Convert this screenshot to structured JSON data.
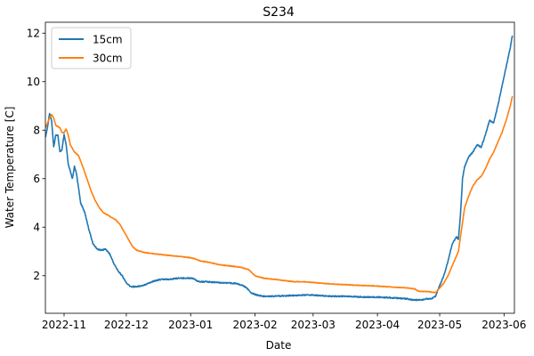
{
  "chart_data": {
    "type": "line",
    "title": "S234",
    "xlabel": "Date",
    "ylabel": "Water Temperature [C]",
    "xlim": [
      "2022-10-23",
      "2023-06-06"
    ],
    "ylim": [
      0.45,
      12.45
    ],
    "xticks": [
      {
        "date": "2022-11-01",
        "label": "2022-11"
      },
      {
        "date": "2022-12-01",
        "label": "2022-12"
      },
      {
        "date": "2023-01-01",
        "label": "2023-01"
      },
      {
        "date": "2023-02-01",
        "label": "2023-02"
      },
      {
        "date": "2023-03-01",
        "label": "2023-03"
      },
      {
        "date": "2023-04-01",
        "label": "2023-04"
      },
      {
        "date": "2023-05-01",
        "label": "2023-05"
      },
      {
        "date": "2023-06-01",
        "label": "2023-06"
      }
    ],
    "yticks": [
      2,
      4,
      6,
      8,
      10,
      12
    ],
    "grid": false,
    "legend_position": "top-left",
    "series": [
      {
        "name": "15cm",
        "color": "#1f77b4",
        "points": [
          [
            "2022-10-23",
            7.7
          ],
          [
            "2022-10-24",
            8.1
          ],
          [
            "2022-10-25",
            8.7
          ],
          [
            "2022-10-26",
            8.4
          ],
          [
            "2022-10-27",
            7.3
          ],
          [
            "2022-10-28",
            7.8
          ],
          [
            "2022-10-29",
            7.8
          ],
          [
            "2022-10-30",
            7.1
          ],
          [
            "2022-10-31",
            7.2
          ],
          [
            "2022-11-01",
            7.8
          ],
          [
            "2022-11-02",
            7.4
          ],
          [
            "2022-11-03",
            6.6
          ],
          [
            "2022-11-05",
            6.0
          ],
          [
            "2022-11-06",
            6.5
          ],
          [
            "2022-11-07",
            6.2
          ],
          [
            "2022-11-08",
            5.6
          ],
          [
            "2022-11-09",
            5.0
          ],
          [
            "2022-11-11",
            4.6
          ],
          [
            "2022-11-13",
            3.9
          ],
          [
            "2022-11-15",
            3.3
          ],
          [
            "2022-11-17",
            3.1
          ],
          [
            "2022-11-19",
            3.05
          ],
          [
            "2022-11-21",
            3.1
          ],
          [
            "2022-11-23",
            2.9
          ],
          [
            "2022-11-25",
            2.5
          ],
          [
            "2022-11-27",
            2.2
          ],
          [
            "2022-11-29",
            2.0
          ],
          [
            "2022-12-01",
            1.7
          ],
          [
            "2022-12-03",
            1.55
          ],
          [
            "2022-12-06",
            1.55
          ],
          [
            "2022-12-09",
            1.6
          ],
          [
            "2022-12-12",
            1.7
          ],
          [
            "2022-12-15",
            1.8
          ],
          [
            "2022-12-18",
            1.85
          ],
          [
            "2022-12-22",
            1.85
          ],
          [
            "2022-12-26",
            1.9
          ],
          [
            "2022-12-30",
            1.9
          ],
          [
            "2023-01-02",
            1.9
          ],
          [
            "2023-01-05",
            1.75
          ],
          [
            "2023-01-09",
            1.75
          ],
          [
            "2023-01-14",
            1.72
          ],
          [
            "2023-01-19",
            1.7
          ],
          [
            "2023-01-23",
            1.68
          ],
          [
            "2023-01-26",
            1.6
          ],
          [
            "2023-01-28",
            1.5
          ],
          [
            "2023-01-30",
            1.3
          ],
          [
            "2023-02-02",
            1.2
          ],
          [
            "2023-02-05",
            1.15
          ],
          [
            "2023-02-10",
            1.15
          ],
          [
            "2023-02-15",
            1.17
          ],
          [
            "2023-02-20",
            1.18
          ],
          [
            "2023-02-25",
            1.2
          ],
          [
            "2023-03-01",
            1.2
          ],
          [
            "2023-03-05",
            1.18
          ],
          [
            "2023-03-10",
            1.15
          ],
          [
            "2023-03-15",
            1.15
          ],
          [
            "2023-03-20",
            1.14
          ],
          [
            "2023-03-25",
            1.12
          ],
          [
            "2023-03-30",
            1.12
          ],
          [
            "2023-04-05",
            1.1
          ],
          [
            "2023-04-10",
            1.08
          ],
          [
            "2023-04-15",
            1.05
          ],
          [
            "2023-04-18",
            1.0
          ],
          [
            "2023-04-22",
            1.0
          ],
          [
            "2023-04-25",
            1.05
          ],
          [
            "2023-04-27",
            1.05
          ],
          [
            "2023-04-29",
            1.15
          ],
          [
            "2023-05-01",
            1.6
          ],
          [
            "2023-05-03",
            2.0
          ],
          [
            "2023-05-05",
            2.6
          ],
          [
            "2023-05-07",
            3.3
          ],
          [
            "2023-05-09",
            3.6
          ],
          [
            "2023-05-10",
            3.5
          ],
          [
            "2023-05-11",
            4.5
          ],
          [
            "2023-05-12",
            6.0
          ],
          [
            "2023-05-13",
            6.5
          ],
          [
            "2023-05-15",
            6.9
          ],
          [
            "2023-05-17",
            7.1
          ],
          [
            "2023-05-19",
            7.4
          ],
          [
            "2023-05-21",
            7.3
          ],
          [
            "2023-05-23",
            7.8
          ],
          [
            "2023-05-25",
            8.4
          ],
          [
            "2023-05-27",
            8.3
          ],
          [
            "2023-05-29",
            9.0
          ],
          [
            "2023-05-31",
            9.8
          ],
          [
            "2023-06-02",
            10.6
          ],
          [
            "2023-06-04",
            11.4
          ],
          [
            "2023-06-05",
            11.9
          ]
        ]
      },
      {
        "name": "30cm",
        "color": "#ff7f0e",
        "points": [
          [
            "2022-10-23",
            8.1
          ],
          [
            "2022-10-24",
            8.3
          ],
          [
            "2022-10-25",
            8.5
          ],
          [
            "2022-10-26",
            8.65
          ],
          [
            "2022-10-27",
            8.5
          ],
          [
            "2022-10-28",
            8.2
          ],
          [
            "2022-10-29",
            8.15
          ],
          [
            "2022-10-30",
            8.1
          ],
          [
            "2022-10-31",
            7.9
          ],
          [
            "2022-11-01",
            7.9
          ],
          [
            "2022-11-02",
            8.05
          ],
          [
            "2022-11-03",
            7.8
          ],
          [
            "2022-11-04",
            7.4
          ],
          [
            "2022-11-06",
            7.1
          ],
          [
            "2022-11-08",
            6.95
          ],
          [
            "2022-11-10",
            6.5
          ],
          [
            "2022-11-12",
            6.0
          ],
          [
            "2022-11-14",
            5.5
          ],
          [
            "2022-11-16",
            5.1
          ],
          [
            "2022-11-18",
            4.8
          ],
          [
            "2022-11-20",
            4.6
          ],
          [
            "2022-11-23",
            4.45
          ],
          [
            "2022-11-26",
            4.3
          ],
          [
            "2022-11-28",
            4.1
          ],
          [
            "2022-11-30",
            3.8
          ],
          [
            "2022-12-02",
            3.5
          ],
          [
            "2022-12-04",
            3.2
          ],
          [
            "2022-12-06",
            3.05
          ],
          [
            "2022-12-10",
            2.95
          ],
          [
            "2022-12-15",
            2.9
          ],
          [
            "2022-12-20",
            2.85
          ],
          [
            "2022-12-26",
            2.8
          ],
          [
            "2022-12-31",
            2.75
          ],
          [
            "2023-01-03",
            2.7
          ],
          [
            "2023-01-06",
            2.6
          ],
          [
            "2023-01-10",
            2.55
          ],
          [
            "2023-01-15",
            2.45
          ],
          [
            "2023-01-20",
            2.4
          ],
          [
            "2023-01-25",
            2.35
          ],
          [
            "2023-01-29",
            2.25
          ],
          [
            "2023-02-01",
            2.0
          ],
          [
            "2023-02-05",
            1.9
          ],
          [
            "2023-02-10",
            1.85
          ],
          [
            "2023-02-15",
            1.8
          ],
          [
            "2023-02-20",
            1.75
          ],
          [
            "2023-02-25",
            1.75
          ],
          [
            "2023-03-01",
            1.72
          ],
          [
            "2023-03-06",
            1.68
          ],
          [
            "2023-03-12",
            1.65
          ],
          [
            "2023-03-18",
            1.62
          ],
          [
            "2023-03-24",
            1.6
          ],
          [
            "2023-03-30",
            1.58
          ],
          [
            "2023-04-05",
            1.55
          ],
          [
            "2023-04-10",
            1.52
          ],
          [
            "2023-04-15",
            1.5
          ],
          [
            "2023-04-19",
            1.45
          ],
          [
            "2023-04-21",
            1.35
          ],
          [
            "2023-04-25",
            1.35
          ],
          [
            "2023-04-29",
            1.3
          ],
          [
            "2023-05-01",
            1.5
          ],
          [
            "2023-05-03",
            1.7
          ],
          [
            "2023-05-05",
            2.0
          ],
          [
            "2023-05-07",
            2.4
          ],
          [
            "2023-05-09",
            2.8
          ],
          [
            "2023-05-10",
            3.0
          ],
          [
            "2023-05-12",
            4.2
          ],
          [
            "2023-05-13",
            4.8
          ],
          [
            "2023-05-15",
            5.3
          ],
          [
            "2023-05-17",
            5.7
          ],
          [
            "2023-05-19",
            5.95
          ],
          [
            "2023-05-21",
            6.1
          ],
          [
            "2023-05-23",
            6.4
          ],
          [
            "2023-05-25",
            6.8
          ],
          [
            "2023-05-27",
            7.1
          ],
          [
            "2023-05-29",
            7.5
          ],
          [
            "2023-05-31",
            7.9
          ],
          [
            "2023-06-02",
            8.4
          ],
          [
            "2023-06-04",
            9.0
          ],
          [
            "2023-06-05",
            9.4
          ]
        ]
      }
    ]
  }
}
